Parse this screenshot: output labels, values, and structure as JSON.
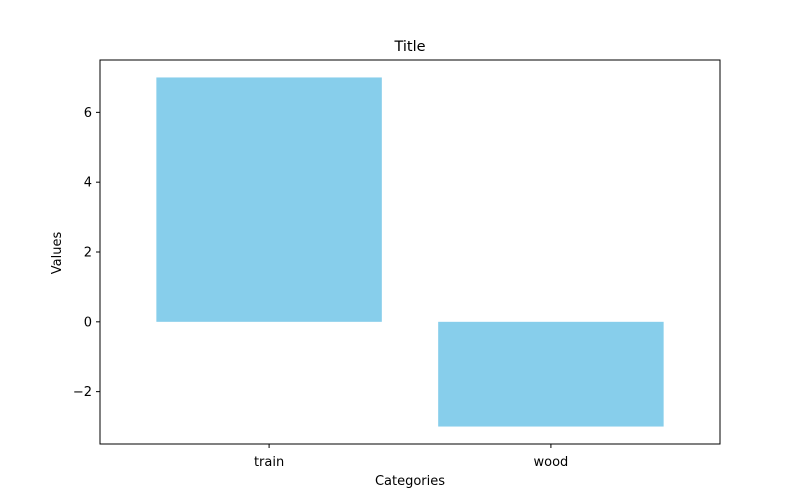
{
  "chart_data": {
    "type": "bar",
    "title": "Title",
    "xlabel": "Categories",
    "ylabel": "Values",
    "categories": [
      "train",
      "wood"
    ],
    "values": [
      7,
      -3
    ],
    "ylim": [
      -3.5,
      7.5
    ],
    "yticks": [
      -2,
      0,
      2,
      4,
      6
    ],
    "ytick_labels": [
      "−2",
      "0",
      "2",
      "4",
      "6"
    ],
    "bar_color": "#87ceeb",
    "grid": false,
    "legend": "none"
  }
}
